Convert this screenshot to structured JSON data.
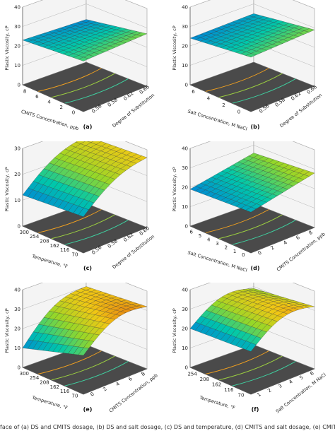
{
  "caption": "face of (a) DS and CMITS dosage, (b) DS and salt dosage, (c) DS and temperature, (d) CMITS and salt dosage, (e) CMITS",
  "chart_data": [
    {
      "id": "a",
      "type": "surface",
      "panel_label": "(a)",
      "ylabel": "Plastic Viscosity, cP",
      "zticks": [
        10,
        20,
        30,
        40
      ],
      "zlim": [
        0,
        40
      ],
      "xlabel": "CMITS Concentration, ppb",
      "xticks": [
        "8",
        "6",
        "4",
        "2",
        "0"
      ],
      "ylabel2": "Degree of Substitution",
      "yticks": [
        "0.56",
        "0.58",
        "0.62",
        "0.66"
      ],
      "corners": [
        23,
        26,
        27,
        22
      ]
    },
    {
      "id": "b",
      "type": "surface",
      "panel_label": "(b)",
      "ylabel": "Plastic Viscosity, cP",
      "zticks": [
        10,
        20,
        30,
        40
      ],
      "zlim": [
        0,
        40
      ],
      "xlabel": "Salt Concentration, M NaCl",
      "xticks": [
        "6",
        "4",
        "2",
        "0"
      ],
      "ylabel2": "Degree of Substitution",
      "yticks": [
        "0.56",
        "0.58",
        "0.62",
        "0.66"
      ],
      "corners": [
        24,
        28,
        29,
        25
      ]
    },
    {
      "id": "c",
      "type": "surface",
      "panel_label": "(c)",
      "ylabel": "Plastic Viscosity, cP",
      "zticks": [
        10,
        20,
        30
      ],
      "zlim": [
        0,
        30
      ],
      "xlabel": "Temperature, °F",
      "xticks": [
        "300",
        "254",
        "208",
        "162",
        "116",
        "70"
      ],
      "ylabel2": "Degree of Substitution",
      "yticks": [
        "0.56",
        "0.58",
        "0.62",
        "0.66"
      ],
      "corners": [
        12,
        14,
        27,
        26
      ]
    },
    {
      "id": "d",
      "type": "surface",
      "panel_label": "(d)",
      "ylabel": "Plastic Viscosity, cP",
      "zticks": [
        10,
        20,
        30,
        40
      ],
      "zlim": [
        0,
        40
      ],
      "xlabel": "Salt Concentration, M NaCl",
      "xticks": [
        "6",
        "5",
        "4",
        "3",
        "2",
        "1",
        "0"
      ],
      "ylabel2": "CMITS Concentration, ppb",
      "yticks": [
        "0",
        "2",
        "4",
        "6",
        "8"
      ],
      "corners": [
        19,
        21,
        28,
        26
      ]
    },
    {
      "id": "e",
      "type": "surface",
      "panel_label": "(e)",
      "ylabel": "Plastic Viscosity, cP",
      "zticks": [
        10,
        20,
        30,
        40
      ],
      "zlim": [
        0,
        40
      ],
      "xlabel": "Temperature, °F",
      "xticks": [
        "300",
        "254",
        "208",
        "162",
        "116",
        "70"
      ],
      "ylabel2": "CMITS Concentration, ppb",
      "yticks": [
        "0",
        "2",
        "4",
        "6",
        "8"
      ],
      "corners": [
        10,
        20,
        32,
        30
      ]
    },
    {
      "id": "f",
      "type": "surface",
      "panel_label": "(f)",
      "ylabel": "Plastic Viscosity, cP",
      "zticks": [
        10,
        20,
        30,
        40
      ],
      "zlim": [
        0,
        40
      ],
      "xlabel": "Temperature, °F",
      "xticks": [
        "254",
        "208",
        "162",
        "116",
        "70"
      ],
      "ylabel2": "Salt Concentration, M NaCl",
      "yticks": [
        "1",
        "2",
        "3",
        "4",
        "5",
        "6"
      ],
      "corners": [
        20,
        22,
        32,
        29
      ]
    }
  ]
}
